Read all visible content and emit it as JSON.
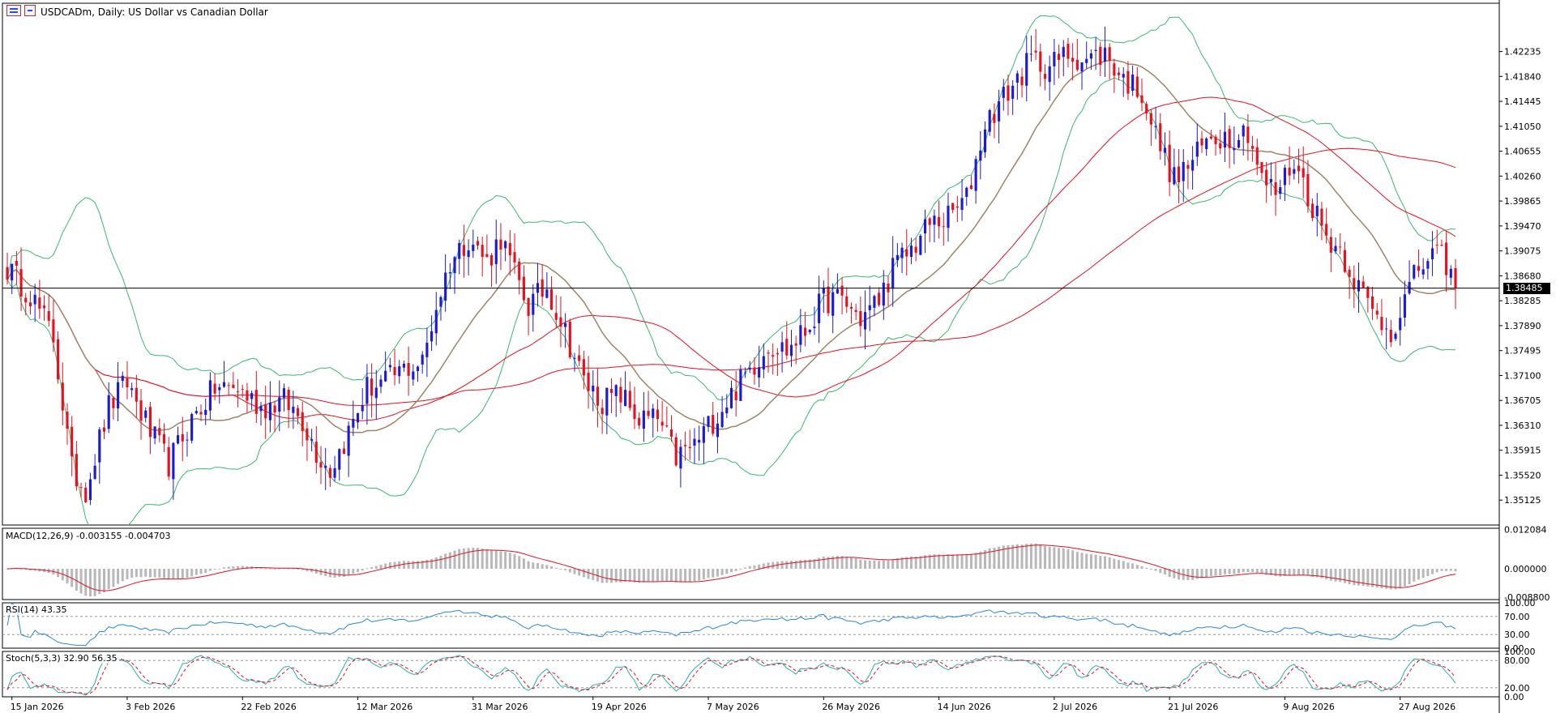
{
  "header": {
    "title": "USDCADm, Daily:  US Dollar vs Canadian Dollar"
  },
  "price_axis": {
    "labels": [
      "1.42235",
      "1.41840",
      "1.41445",
      "1.41050",
      "1.40655",
      "1.40260",
      "1.39865",
      "1.39470",
      "1.39075",
      "1.38680",
      "1.38285",
      "1.37890",
      "1.37495",
      "1.37100",
      "1.36705",
      "1.36310",
      "1.35915",
      "1.35520",
      "1.35125"
    ],
    "current_price": "1.38485",
    "range": [
      1.3473,
      1.43
    ]
  },
  "time_axis": {
    "labels": [
      "15 Jan 2026",
      "3 Feb 2026",
      "22 Feb 2026",
      "12 Mar 2026",
      "31 Mar 2026",
      "19 Apr 2026",
      "7 May 2026",
      "26 May 2026",
      "14 Jun 2026",
      "2 Jul 2026",
      "21 Jul 2026",
      "9 Aug 2026",
      "27 Aug 2026"
    ]
  },
  "macd": {
    "label": "MACD(12,26,9) -0.003155 -0.004703",
    "axis_labels": [
      "0.012084",
      "0.000000",
      "-0.008800"
    ],
    "range": [
      -0.0095,
      0.0125
    ]
  },
  "rsi": {
    "label": "RSI(14) 43.35",
    "axis_labels": [
      "100.00",
      "70.00",
      "30.00",
      "0.00"
    ]
  },
  "stoch": {
    "label": "Stoch(5,3,3) 32.90 56.35",
    "axis_labels": [
      "100.00",
      "80.00",
      "20.00",
      "0.00"
    ]
  },
  "colors": {
    "bull": "#1a1ad8",
    "bear": "#e8101e",
    "bb": "#3cb86e",
    "ma_short": "#a08466",
    "ma_red": "#e8101e",
    "macd_hist": "#b8b8b8",
    "macd_signal": "#e8101e",
    "rsi": "#2b87d8",
    "stoch_main": "#2ab0a8",
    "stoch_signal": "#e8101e"
  },
  "chart_data": {
    "type": "candlestick",
    "symbol": "USDCADm",
    "timeframe": "Daily",
    "anchors": [
      [
        0,
        1.388
      ],
      [
        5,
        1.384
      ],
      [
        10,
        1.377
      ],
      [
        14,
        1.356
      ],
      [
        17,
        1.353
      ],
      [
        22,
        1.366
      ],
      [
        26,
        1.37
      ],
      [
        31,
        1.362
      ],
      [
        35,
        1.357
      ],
      [
        40,
        1.364
      ],
      [
        45,
        1.369
      ],
      [
        50,
        1.369
      ],
      [
        55,
        1.366
      ],
      [
        60,
        1.367
      ],
      [
        64,
        1.364
      ],
      [
        67,
        1.359
      ],
      [
        70,
        1.356
      ],
      [
        74,
        1.362
      ],
      [
        78,
        1.369
      ],
      [
        82,
        1.37
      ],
      [
        86,
        1.372
      ],
      [
        90,
        1.373
      ],
      [
        93,
        1.382
      ],
      [
        96,
        1.389
      ],
      [
        100,
        1.393
      ],
      [
        104,
        1.389
      ],
      [
        107,
        1.393
      ],
      [
        110,
        1.387
      ],
      [
        113,
        1.382
      ],
      [
        117,
        1.385
      ],
      [
        121,
        1.378
      ],
      [
        125,
        1.37
      ],
      [
        129,
        1.367
      ],
      [
        133,
        1.368
      ],
      [
        137,
        1.364
      ],
      [
        141,
        1.364
      ],
      [
        145,
        1.358
      ],
      [
        149,
        1.36
      ],
      [
        153,
        1.364
      ],
      [
        157,
        1.368
      ],
      [
        161,
        1.372
      ],
      [
        165,
        1.376
      ],
      [
        169,
        1.375
      ],
      [
        173,
        1.378
      ],
      [
        177,
        1.383
      ],
      [
        181,
        1.383
      ],
      [
        185,
        1.38
      ],
      [
        189,
        1.383
      ],
      [
        192,
        1.388
      ],
      [
        196,
        1.391
      ],
      [
        200,
        1.395
      ],
      [
        204,
        1.396
      ],
      [
        208,
        1.399
      ],
      [
        212,
        1.411
      ],
      [
        216,
        1.415
      ],
      [
        219,
        1.418
      ],
      [
        222,
        1.421
      ],
      [
        226,
        1.42
      ],
      [
        230,
        1.422
      ],
      [
        234,
        1.421
      ],
      [
        238,
        1.422
      ],
      [
        242,
        1.418
      ],
      [
        246,
        1.416
      ],
      [
        249,
        1.409
      ],
      [
        253,
        1.402
      ],
      [
        257,
        1.405
      ],
      [
        261,
        1.409
      ],
      [
        265,
        1.409
      ],
      [
        269,
        1.41
      ],
      [
        272,
        1.402
      ],
      [
        275,
        1.4
      ],
      [
        279,
        1.405
      ],
      [
        283,
        1.398
      ],
      [
        286,
        1.393
      ],
      [
        289,
        1.391
      ],
      [
        293,
        1.385
      ],
      [
        296,
        1.381
      ],
      [
        300,
        1.378
      ],
      [
        303,
        1.383
      ],
      [
        306,
        1.388
      ],
      [
        309,
        1.39
      ],
      [
        312,
        1.389
      ],
      [
        314,
        1.3848
      ]
    ],
    "ranges": {
      "macd": [
        -0.0095,
        0.0125
      ],
      "rsi": [
        0,
        100
      ],
      "stoch": [
        0,
        100
      ]
    }
  }
}
